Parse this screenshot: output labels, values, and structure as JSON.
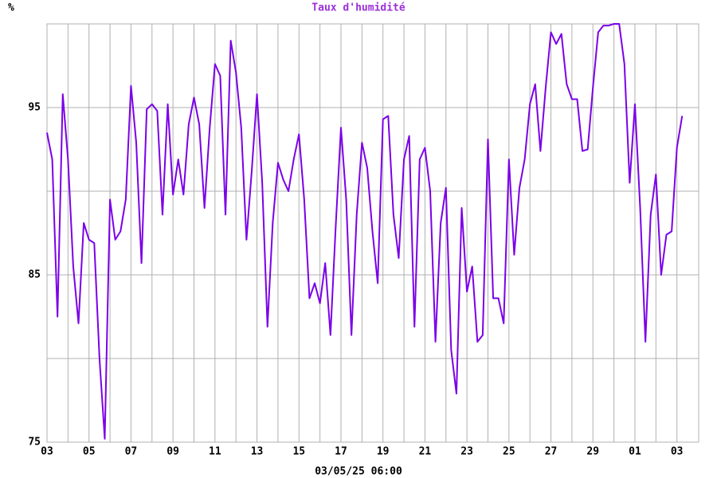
{
  "chart_data": {
    "type": "line",
    "title": "Taux d'humidité",
    "y_label": "%",
    "x_label": "03/05/25 06:00",
    "categories": [
      "03",
      null,
      null,
      null,
      null,
      null,
      null,
      null,
      "05",
      null,
      null,
      null,
      null,
      null,
      null,
      null,
      "07",
      null,
      null,
      null,
      null,
      null,
      null,
      null,
      "09",
      null,
      null,
      null,
      null,
      null,
      null,
      null,
      "11",
      null,
      null,
      null,
      null,
      null,
      null,
      null,
      "13",
      null,
      null,
      null,
      null,
      null,
      null,
      null,
      "15",
      null,
      null,
      null,
      null,
      null,
      null,
      null,
      "17",
      null,
      null,
      null,
      null,
      null,
      null,
      null,
      "19",
      null,
      null,
      null,
      null,
      null,
      null,
      null,
      "21",
      null,
      null,
      null,
      null,
      null,
      null,
      null,
      "23",
      null,
      null,
      null,
      null,
      null,
      null,
      null,
      "25",
      null,
      null,
      null,
      null,
      null,
      null,
      null,
      "27",
      null,
      null,
      null,
      null,
      null,
      null,
      null,
      "29",
      null,
      null,
      null,
      null,
      null,
      null,
      null,
      "01",
      null,
      null,
      null,
      null,
      null,
      null,
      null,
      "03",
      null
    ],
    "series": [
      {
        "name": "Taux d'humidité",
        "color": "#7b00e8",
        "values": [
          93.5,
          91.9,
          82.5,
          95.8,
          91.9,
          85.5,
          82.1,
          88.1,
          87.1,
          86.9,
          80,
          75.2,
          89.5,
          87.1,
          87.6,
          89.5,
          96.3,
          92.9,
          85.7,
          94.9,
          95.2,
          94.8,
          88.6,
          95.2,
          89.8,
          91.9,
          89.8,
          94,
          95.6,
          94,
          89,
          93.8,
          97.6,
          96.9,
          88.6,
          99,
          97.1,
          93.8,
          87.1,
          91.2,
          95.8,
          90.5,
          81.9,
          88.1,
          91.7,
          90.7,
          90,
          91.9,
          93.4,
          89.5,
          83.6,
          84.5,
          83.3,
          85.7,
          81.4,
          87.9,
          93.8,
          89.5,
          81.4,
          88.6,
          92.9,
          91.4,
          87.6,
          84.5,
          94.3,
          94.5,
          88.6,
          86,
          91.9,
          93.3,
          81.9,
          91.9,
          92.6,
          90,
          81,
          88.1,
          90.2,
          80.5,
          77.9,
          89,
          84,
          85.5,
          81,
          81.4,
          93.1,
          83.6,
          83.6,
          82.1,
          91.9,
          86.2,
          90.2,
          91.9,
          95.2,
          96.4,
          92.4,
          96.2,
          99.5,
          98.8,
          99.4,
          96.4,
          95.5,
          95.5,
          92.4,
          92.5,
          96.2,
          99.5,
          99.9,
          99.9,
          100,
          100,
          97.6,
          90.5,
          95.2,
          89,
          81,
          88.6,
          91,
          85,
          87.4,
          87.6,
          92.6,
          94.5
        ]
      }
    ],
    "ylim": [
      75,
      100
    ],
    "yticks": [
      75,
      85,
      95
    ],
    "ygrid": [
      75,
      80,
      85,
      90,
      95,
      100
    ],
    "grid": true
  }
}
